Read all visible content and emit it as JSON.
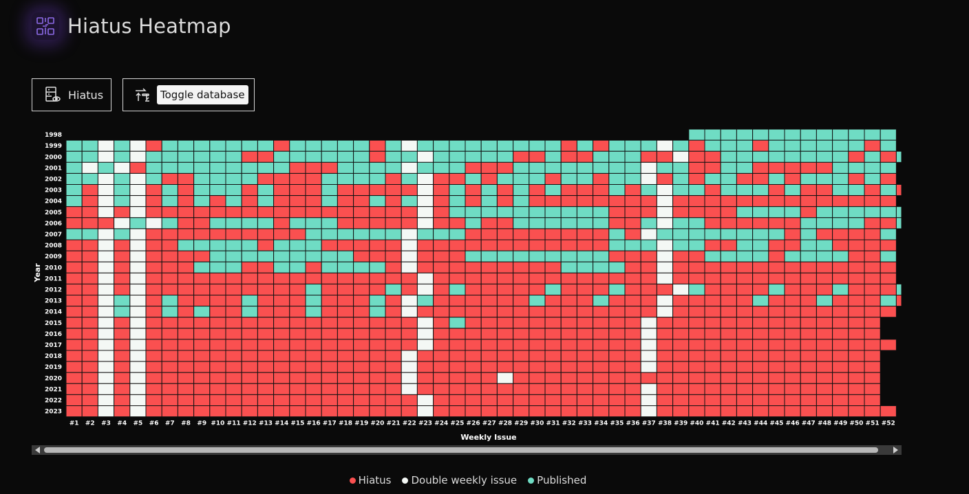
{
  "header": {
    "title": "Hiatus Heatmap",
    "logo_icon": "qr-code-icon"
  },
  "buttons": {
    "hiatus": {
      "label": "Hiatus",
      "icon": "database-view-icon"
    },
    "toggle": {
      "label": "Toggle database",
      "icon": "toggle-arrows-icon"
    }
  },
  "colors": {
    "hiatus": "#fa5050",
    "double": "#f4f8f5",
    "published": "#6fdcc4",
    "grid": "#111111"
  },
  "legend": [
    {
      "label": "Hiatus",
      "key": "H"
    },
    {
      "label": "Double weekly issue",
      "key": "D"
    },
    {
      "label": "Published",
      "key": "P"
    }
  ],
  "chart_data": {
    "type": "heatmap",
    "xlabel": "Weekly Issue",
    "ylabel": "Year",
    "x_labels_visible": [
      "#1",
      "#2",
      "#3",
      "#4",
      "#5",
      "#6",
      "#7",
      "#8",
      "#9",
      "#10",
      "#11",
      "#12",
      "#13",
      "#14",
      "#15",
      "#16",
      "#17",
      "#18",
      "#19",
      "#20",
      "#21",
      "#22",
      "#23",
      "#24",
      "#25",
      "#26",
      "#27",
      "#28",
      "#29",
      "#30",
      "#31",
      "#32",
      "#33",
      "#34",
      "#35",
      "#36",
      "#37",
      "#38",
      "#39",
      "#40",
      "#41",
      "#42",
      "#43",
      "#44",
      "#45",
      "#46",
      "#47",
      "#48",
      "#49",
      "#50",
      "#51",
      "#52",
      "#"
    ],
    "y_labels": [
      "1998",
      "1999",
      "2000",
      "2001",
      "2002",
      "2003",
      "2004",
      "2005",
      "2006",
      "2007",
      "2008",
      "2009",
      "2010",
      "2011",
      "2012",
      "2013",
      "2014",
      "2015",
      "2016",
      "2017",
      "2018",
      "2019",
      "2020",
      "2021",
      "2022",
      "2023"
    ],
    "categories": {
      "H": "Hiatus",
      "D": "Double weekly issue",
      "P": "Published",
      "_": "none"
    },
    "rows": {
      "1998": "_______________________________________PPPPPPPPPPPPP",
      "1999": "PPDPDHPPPPPPPHPPPPPHPDPPPPPPPPPHPHPPPDPHPPPHPPPPPPHP",
      "2000": "PPDPDPPPPPPHHPPPPPPHPPDPPPPPHHPHHPPPHHDHHPPPPPPPPHPHP",
      "2001": "PDPDHPPPPPPPPPHHHPPPPDPPPHHHPPPPPPPPDPPHHPPHHHHHPPPP",
      "2002": "PPDPDPHHPPPPHHHHPPPPHPDHHPHPPPHPPHPPDHPHPPHHPHPPPHPH",
      "2003": "PHDPDHPHPPPHPHHHPHHHHHDHPHPHPHPHHHPHPDPPHPPPHPHHPPHPH",
      "2004": "PHDPDHPHPHPHPHHHPHHPHPDHPHPHPHHHHHHHHDHHHHHHHHHHHHHH",
      "2005": "HHDHDHHHHHHHHHHHHHHHHHDHPPPPPPPPPPHHHDHHHHPPPPHPPPPPP",
      "2006": "HHHDPDPHHPPPPHPPPHHHHHDHHPHHPPPPPPHHPDPPHHHHHHPPPPHHPP",
      "2007": "PPDPDHHHHHHHHHHPPPPPPDPPPHHHHHHHHHPHDPPPPPPPPHPHHHHP",
      "2008": "HHDHDHHPPPPPHPPPHHHHHDHHHHHHHHHHHHPPPDPPHHPPHHPPHHHH",
      "2009": "HHDHDHHHHPPPPPPPPPHHHDHHHPPPPPPPPPHHHDHHPPPPHPPPPHHP",
      "2010": "HHDHDHHHPPPHHPPHPPPPHDHHHHHHHHHPPPPHHDHHHHHHHHHHHHHH",
      "2011": "HHDHDHHHHHHHHHHHHHHHHHDHHHHHHHHHHHHHHDHHHHHHHHHHHHHH",
      "2012": "HHDHDHHHHHHHHHHPHHHHPHDHPHHHHHPHHHPHHHDPHHHHPHHHPHHHPH",
      "2013": "HHDPDHPHHHHPHHHPHHHPHDPHHHHHHPHHHPHHHDHHHHHPHHHPHHHPH",
      "2014": "HHDPDHPHPHHPHHHPHHHPHDHHHHHHHHHHHHHHHDHHHHHHHHHHHHHH",
      "2015": "HHDHDHHHHHHHHHHHHHHHHHDHPHHHHHHHHHHHDHHHHHHHHHHHHHH",
      "2016": "HHDHDHHHHHHHHHHHHHHHHHDHHHHHHHHHHHHHDHHHHHHHHHHHHHH",
      "2017": "HHDHDHHHHHHHHHHHHHHHHHDHHHHHHHHHHHHHDHHHHHHHHHHHHHHH",
      "2018": "HHDHDHHHHHHHHHHHHHHHHDHHHHHHHHHHHHHHDHHHHHHHHHHHHHH",
      "2019": "HHDHDHHHHHHHHHHHHHHHHDHHHHHHHHHHHHHHDHHHHHHHHHHHHHH",
      "2020": "HHDHDHHHHHHHHHHHHHHHHDHHHHHDHHHHHHHHHHHHHHHHHHHHHHH",
      "2021": "HHDHDHHHHHHHHHHHHHHHHDHHHHHHHHHHHHHHDHHHHHHHHHHHHHH",
      "2022": "HHDHDHHHHHHHHHHHHHHHHHDHHHHHHHHHHHHHDHHHHHHHHHHHHHH",
      "2023": "HHDHDHHHHHHHHHHHHHHHHHDHHHHHHHHHHHHHDHHHHHHHHHHHHHHH"
    }
  },
  "scrollbar": {
    "position": 0.02
  }
}
